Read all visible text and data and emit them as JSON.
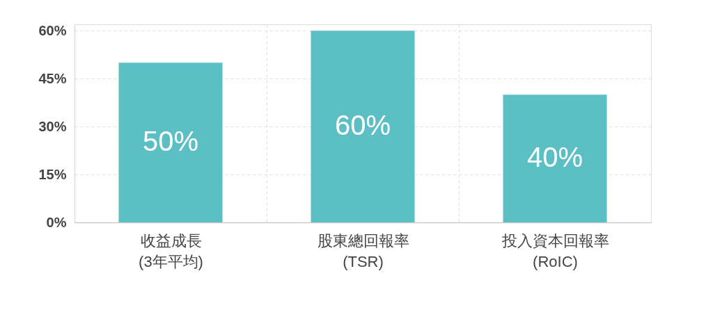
{
  "chart_data": {
    "type": "bar",
    "categories": [
      "收益成長\n(3年平均)",
      "股東總回報率\n(TSR)",
      "投入資本回報率\n(RoIC)"
    ],
    "values": [
      50,
      60,
      40
    ],
    "color": "#5bbfc3",
    "value_labels": [
      "50%",
      "60%",
      "40%"
    ],
    "ylim": [
      0,
      62
    ],
    "yticks": [
      {
        "value": 0,
        "label": "0%"
      },
      {
        "value": 15,
        "label": "15%"
      },
      {
        "value": 30,
        "label": "30%"
      },
      {
        "value": 45,
        "label": "45%"
      },
      {
        "value": 60,
        "label": "60%"
      }
    ],
    "grid": true
  }
}
